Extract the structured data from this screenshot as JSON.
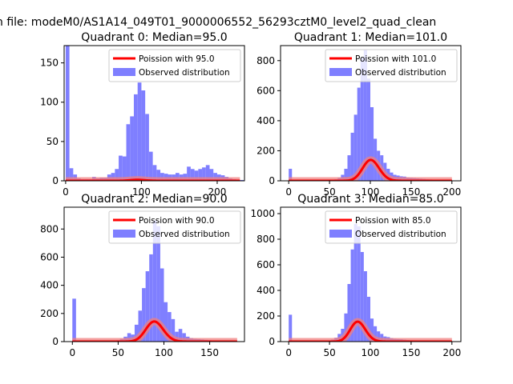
{
  "figure": {
    "suptitle": "n file: modeM0/AS1A14_049T01_9000006552_56293cztM0_level2_quad_clean"
  },
  "colors": {
    "hist": "#7f7fff",
    "poisson_line": "#ff0000",
    "poisson_halo": "#f08080",
    "axes": "#000000",
    "background": "#ffffff"
  },
  "chart_data": [
    {
      "type": "bar",
      "title": "Quadrant 0: Median=95.0",
      "xlabel": "",
      "ylabel": "",
      "xlim": [
        -2,
        236
      ],
      "ylim": [
        0,
        172
      ],
      "xticks": [
        0,
        100,
        200
      ],
      "yticks": [
        0,
        50,
        100,
        150
      ],
      "bin_width": 5,
      "hist_bins": [
        0,
        5,
        10,
        15,
        20,
        25,
        30,
        35,
        40,
        45,
        50,
        55,
        60,
        65,
        70,
        75,
        80,
        85,
        90,
        95,
        100,
        105,
        110,
        115,
        120,
        125,
        130,
        135,
        140,
        145,
        150,
        155,
        160,
        165,
        170,
        175,
        180,
        185,
        190,
        195,
        200,
        205,
        210,
        215,
        220,
        225,
        230
      ],
      "hist_values": [
        172,
        16,
        8,
        3,
        2,
        2,
        2,
        5,
        3,
        4,
        4,
        8,
        10,
        15,
        32,
        31,
        72,
        82,
        110,
        125,
        115,
        85,
        37,
        20,
        14,
        10,
        9,
        8,
        8,
        10,
        8,
        9,
        18,
        15,
        13,
        15,
        17,
        20,
        15,
        10,
        8,
        7,
        5,
        3,
        2,
        1,
        1
      ],
      "poisson_lambda": 95.0,
      "poisson_scale": 30.5,
      "poisson_range": [
        0,
        230
      ],
      "legend": [
        "Poission with 95.0",
        "Observed distribution"
      ],
      "legend_loc": "upper right"
    },
    {
      "type": "bar",
      "title": "Quadrant 1: Median=101.0",
      "xlabel": "",
      "ylabel": "",
      "xlim": [
        -10,
        211
      ],
      "ylim": [
        0,
        900
      ],
      "xticks": [
        0,
        50,
        100,
        150,
        200
      ],
      "yticks": [
        0,
        200,
        400,
        600,
        800
      ],
      "bin_width": 4,
      "hist_bins": [
        0,
        4,
        8,
        12,
        16,
        20,
        24,
        28,
        32,
        36,
        40,
        44,
        48,
        52,
        56,
        60,
        64,
        68,
        72,
        76,
        80,
        84,
        88,
        92,
        96,
        100,
        104,
        108,
        112,
        116,
        120,
        124,
        128,
        132,
        136,
        140,
        144,
        148,
        152,
        156,
        160,
        164,
        168,
        172,
        176,
        180,
        184,
        188,
        192,
        196
      ],
      "hist_values": [
        80,
        5,
        3,
        3,
        2,
        2,
        2,
        2,
        2,
        2,
        5,
        5,
        6,
        8,
        10,
        20,
        40,
        80,
        170,
        320,
        440,
        620,
        820,
        870,
        680,
        490,
        280,
        200,
        170,
        120,
        80,
        55,
        40,
        35,
        30,
        28,
        22,
        20,
        18,
        16,
        14,
        12,
        10,
        9,
        8,
        7,
        6,
        5,
        4,
        3
      ],
      "poisson_lambda": 101.0,
      "poisson_scale": 3500,
      "poisson_range": [
        0,
        200
      ],
      "legend": [
        "Poission with 101.0",
        "Observed distribution"
      ],
      "legend_loc": "upper right"
    },
    {
      "type": "bar",
      "title": "Quadrant 2: Median=90.0",
      "xlabel": "",
      "ylabel": "",
      "xlim": [
        -9,
        188
      ],
      "ylim": [
        0,
        955
      ],
      "xticks": [
        0,
        50,
        100,
        150
      ],
      "yticks": [
        0,
        200,
        400,
        600,
        800
      ],
      "bin_width": 4,
      "hist_bins": [
        0,
        4,
        8,
        12,
        16,
        20,
        24,
        28,
        32,
        36,
        40,
        44,
        48,
        52,
        56,
        60,
        64,
        68,
        72,
        76,
        80,
        84,
        88,
        92,
        96,
        100,
        104,
        108,
        112,
        116,
        120,
        124,
        128,
        132,
        136,
        140,
        144,
        148,
        152,
        156,
        160,
        164,
        168,
        172,
        176
      ],
      "hist_values": [
        305,
        3,
        2,
        2,
        2,
        2,
        2,
        2,
        2,
        2,
        5,
        6,
        10,
        20,
        35,
        60,
        50,
        120,
        220,
        380,
        500,
        620,
        860,
        820,
        520,
        280,
        210,
        160,
        70,
        90,
        60,
        35,
        25,
        20,
        18,
        15,
        12,
        10,
        8,
        7,
        6,
        4,
        3,
        2,
        2
      ],
      "poisson_lambda": 90.0,
      "poisson_scale": 3400,
      "poisson_range": [
        0,
        180
      ],
      "legend": [
        "Poission with 90.0",
        "Observed distribution"
      ],
      "legend_loc": "upper right"
    },
    {
      "type": "bar",
      "title": "Quadrant 3: Median=85.0",
      "xlabel": "",
      "ylabel": "",
      "xlim": [
        -10,
        211
      ],
      "ylim": [
        0,
        1050
      ],
      "xticks": [
        0,
        50,
        100,
        150,
        200
      ],
      "yticks": [
        0,
        200,
        400,
        600,
        800,
        1000
      ],
      "bin_width": 4,
      "hist_bins": [
        0,
        4,
        8,
        12,
        16,
        20,
        24,
        28,
        32,
        36,
        40,
        44,
        48,
        52,
        56,
        60,
        64,
        68,
        72,
        76,
        80,
        84,
        88,
        92,
        96,
        100,
        104,
        108,
        112,
        116,
        120,
        124,
        128,
        132,
        136,
        140,
        144,
        148,
        152,
        156,
        160,
        164,
        168,
        172,
        176,
        180,
        184,
        188,
        192,
        196
      ],
      "hist_values": [
        210,
        3,
        2,
        2,
        2,
        2,
        2,
        2,
        2,
        2,
        4,
        5,
        8,
        15,
        30,
        60,
        100,
        220,
        450,
        720,
        920,
        900,
        700,
        550,
        350,
        180,
        120,
        80,
        60,
        40,
        35,
        28,
        22,
        20,
        18,
        15,
        12,
        10,
        9,
        8,
        7,
        6,
        5,
        4,
        3,
        3,
        2,
        2,
        2,
        2
      ],
      "poisson_lambda": 85.0,
      "poisson_scale": 3600,
      "poisson_range": [
        0,
        200
      ],
      "legend": [
        "Poission with 85.0",
        "Observed distribution"
      ],
      "legend_loc": "upper right"
    }
  ]
}
